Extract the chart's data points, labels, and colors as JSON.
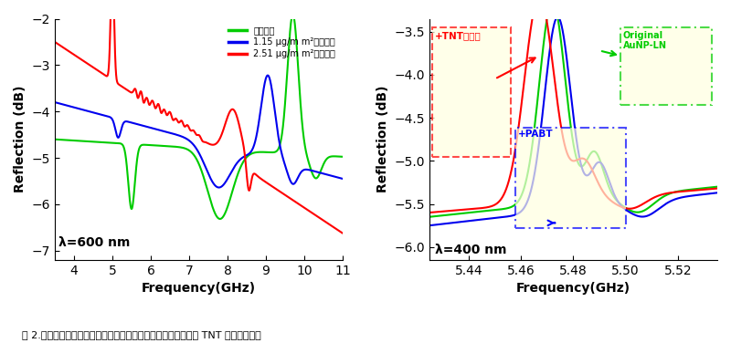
{
  "left_xlim": [
    3.5,
    11.0
  ],
  "left_ylim": [
    -7.2,
    -2.0
  ],
  "left_xlabel": "Frequency(GHz)",
  "left_ylabel": "Reflection (dB)",
  "left_lambda": "λ=600 nm",
  "right_xlim": [
    5.425,
    5.535
  ],
  "right_ylim": [
    -6.15,
    -3.35
  ],
  "right_xlabel": "Frequency(GHz)",
  "right_ylabel": "Reflection (dB)",
  "right_lambda": "λ=400 nm",
  "colors": {
    "green": "#00cc00",
    "blue": "#0000ee",
    "red": "#ff0000"
  },
  "legend_label0": "初始状态",
  "legend_label1": "1.15 μg/m m²质量负载",
  "legend_label2": "2.51 μg/m m²质量负载",
  "right_label_tnt": "+TNT爆炸物",
  "right_label_pabt": "+PABT",
  "right_label_original": "Original\nAuNP-LN",
  "caption": "图 2.基于超高频声表面波器件电极质量负载效应的微质量探测和 TNT 超灵敏性检测",
  "fig_width": 8.0,
  "fig_height": 3.76
}
